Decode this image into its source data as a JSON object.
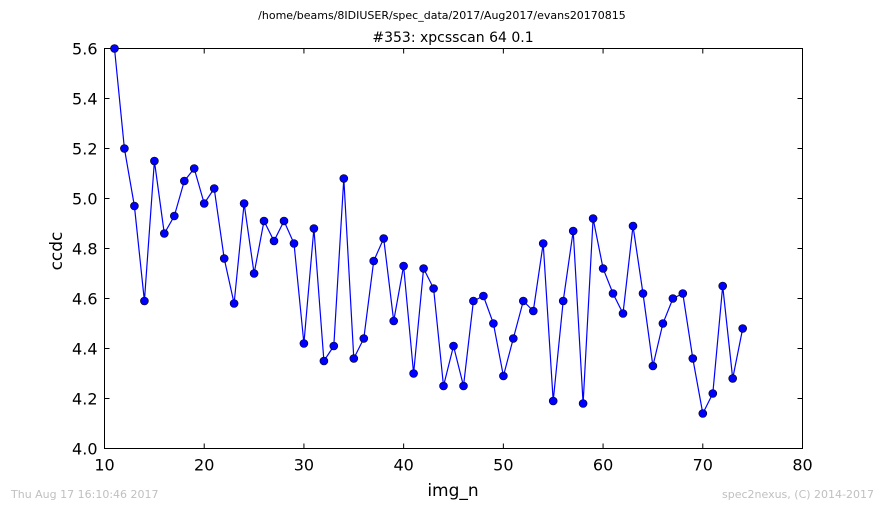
{
  "header": {
    "suptitle": "/home/beams/8IDIUSER/spec_data/2017/Aug2017/evans20170815"
  },
  "footer": {
    "timestamp": "Thu Aug 17 16:10:46 2017",
    "credit": "spec2nexus, (C) 2014-2017"
  },
  "colors": {
    "series": "#0000ff",
    "marker_fill": "#0000ff",
    "marker_edge": "#000000",
    "footer_text": "#c0c0c0"
  },
  "chart_data": {
    "type": "line",
    "title": "#353: xpcsscan 64 0.1",
    "xlabel": "img_n",
    "ylabel": "ccdc",
    "xlim": [
      10,
      80
    ],
    "ylim": [
      4.0,
      5.6
    ],
    "xticks": [
      10,
      20,
      30,
      40,
      50,
      60,
      70,
      80
    ],
    "yticks": [
      4.0,
      4.2,
      4.4,
      4.6,
      4.8,
      5.0,
      5.2,
      5.4,
      5.6
    ],
    "xtick_labels": [
      "10",
      "20",
      "30",
      "40",
      "50",
      "60",
      "70",
      "80"
    ],
    "ytick_labels": [
      "4.0",
      "4.2",
      "4.4",
      "4.6",
      "4.8",
      "5.0",
      "5.2",
      "5.4",
      "5.6"
    ],
    "grid": false,
    "legend": "none",
    "markers": "circle",
    "series": [
      {
        "x": [
          11,
          12,
          13,
          14,
          15,
          16,
          17,
          18,
          19,
          20,
          21,
          22,
          23,
          24,
          25,
          26,
          27,
          28,
          29,
          30,
          31,
          32,
          33,
          34,
          35,
          36,
          37,
          38,
          39,
          40,
          41,
          42,
          43,
          44,
          45,
          46,
          47,
          48,
          49,
          50,
          51,
          52,
          53,
          54,
          55,
          56,
          57,
          58,
          59,
          60,
          61,
          62,
          63,
          64,
          65,
          66,
          67,
          68,
          69,
          70,
          71,
          72,
          73,
          74
        ],
        "y": [
          5.6,
          5.2,
          4.97,
          4.59,
          5.15,
          4.86,
          4.93,
          5.07,
          5.12,
          4.98,
          5.04,
          4.76,
          4.58,
          4.98,
          4.7,
          4.91,
          4.83,
          4.91,
          4.82,
          4.42,
          4.88,
          4.35,
          4.41,
          5.08,
          4.36,
          4.44,
          4.75,
          4.84,
          4.51,
          4.73,
          4.3,
          4.72,
          4.64,
          4.25,
          4.41,
          4.25,
          4.59,
          4.61,
          4.5,
          4.29,
          4.44,
          4.59,
          4.55,
          4.82,
          4.19,
          4.59,
          4.87,
          4.18,
          4.92,
          4.72,
          4.62,
          4.54,
          4.89,
          4.62,
          4.33,
          4.5,
          4.6,
          4.62,
          4.36,
          4.14,
          4.22,
          4.65,
          4.28,
          4.48
        ]
      }
    ]
  }
}
